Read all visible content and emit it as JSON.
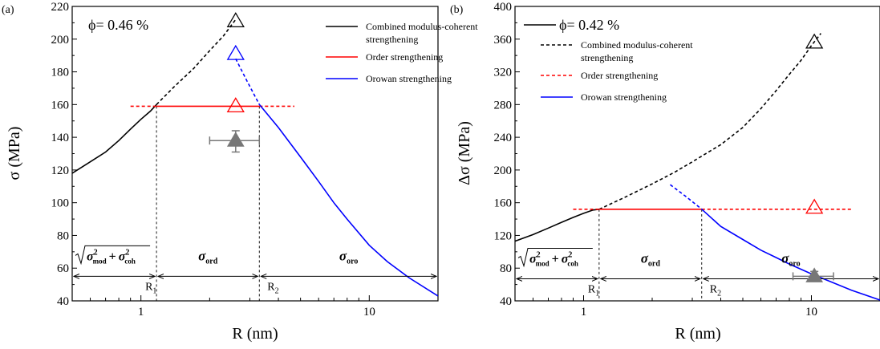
{
  "chart_data": [
    {
      "panel_label": "(a)",
      "type": "line",
      "x_scale": "log",
      "xlim": [
        0.5,
        20
      ],
      "ylim": [
        40,
        220
      ],
      "xlabel": "R (nm)",
      "ylabel": "σ (MPa)",
      "x_tick_labels": [
        {
          "value": 1,
          "label": "1"
        },
        {
          "value": 10,
          "label": "10"
        }
      ],
      "y_ticks": [
        40,
        60,
        80,
        100,
        120,
        140,
        160,
        180,
        200,
        220
      ],
      "phi_label": "ϕ= 0.46 %",
      "legend_position": "top-right",
      "legend": [
        {
          "line1": "Combined modulus-coherent",
          "line2": "strengthening",
          "color": "#000000",
          "style": "solid"
        },
        {
          "line1": "Order strengthening",
          "line2": "",
          "color": "#ff0000",
          "style": "solid"
        },
        {
          "line1": "Orowan strengthening",
          "line2": "",
          "color": "#0000ff",
          "style": "solid"
        }
      ],
      "series": [
        {
          "name": "Combined modulus-coherent strengthening",
          "color": "#000000",
          "dash": false,
          "x": [
            0.5,
            0.6,
            0.7,
            0.8,
            0.9,
            1.0,
            1.1,
            1.17
          ],
          "y": [
            118,
            125,
            131,
            138,
            145,
            151,
            156,
            160
          ]
        },
        {
          "name": "",
          "color": "#000000",
          "dash": true,
          "x": [
            1.17,
            1.4,
            1.7,
            2.0,
            2.3,
            2.6
          ],
          "y": [
            160,
            171,
            182,
            193,
            202,
            212
          ]
        },
        {
          "name": "Order strengthening",
          "color": "#ff0000",
          "dash": false,
          "x": [
            1.17,
            3.3
          ],
          "y": [
            159,
            159
          ]
        },
        {
          "name": "",
          "color": "#ff0000",
          "dash": true,
          "x": [
            0.9,
            1.17
          ],
          "y": [
            159,
            159
          ]
        },
        {
          "name": "",
          "color": "#ff0000",
          "dash": true,
          "x": [
            3.3,
            4.7
          ],
          "y": [
            159,
            159
          ]
        },
        {
          "name": "",
          "color": "#0000ff",
          "dash": true,
          "x": [
            2.6,
            2.9,
            3.3
          ],
          "y": [
            188,
            175,
            160
          ]
        },
        {
          "name": "Orowan strengthening",
          "color": "#0000ff",
          "dash": false,
          "x": [
            3.3,
            4.0,
            5.0,
            6.0,
            7.0,
            8.0,
            10.0,
            12.0,
            15.0,
            20.0
          ],
          "y": [
            160,
            146,
            128,
            113,
            100,
            90,
            74,
            64,
            54,
            43
          ]
        }
      ],
      "markers": [
        {
          "shape": "triangle-open",
          "color": "#000000",
          "x": 2.6,
          "y": 211
        },
        {
          "shape": "triangle-open",
          "color": "#0000ff",
          "x": 2.6,
          "y": 191
        },
        {
          "shape": "triangle-open",
          "color": "#ff0000",
          "x": 2.6,
          "y": 159
        },
        {
          "shape": "triangle-filled",
          "color": "#777777",
          "x": 2.6,
          "y": 138,
          "yerr": [
            131,
            144
          ],
          "xerr": [
            2.0,
            3.3
          ]
        }
      ],
      "vlines": [
        {
          "x": 1.17,
          "label_base": "R",
          "label_sub": "1"
        },
        {
          "x": 3.3,
          "label_base": "R",
          "label_sub": "2"
        }
      ],
      "arrow_y": 55,
      "regions": [
        {
          "x_from": 0.5,
          "x_to": 1.17,
          "kind": "sqrt",
          "sym": "σ",
          "sub1": "mod",
          "sub2": "coh"
        },
        {
          "x_from": 1.17,
          "x_to": 3.3,
          "kind": "sigma",
          "sym": "σ",
          "sub": "ord"
        },
        {
          "x_from": 3.3,
          "x_to": 20,
          "kind": "sigma",
          "sym": "σ",
          "sub": "oro"
        }
      ]
    },
    {
      "panel_label": "(b)",
      "type": "line",
      "x_scale": "log",
      "xlim": [
        0.5,
        20
      ],
      "ylim": [
        40,
        400
      ],
      "xlabel": "R (nm)",
      "ylabel": "Δσ (MPa)",
      "x_tick_labels": [
        {
          "value": 1,
          "label": "1"
        },
        {
          "value": 10,
          "label": "10"
        }
      ],
      "y_ticks": [
        40,
        80,
        120,
        160,
        200,
        240,
        280,
        320,
        360,
        400
      ],
      "phi_label": "ϕ= 0.42 %",
      "legend_position": "top-left",
      "legend": [
        {
          "line1": "Combined modulus-coherent",
          "line2": "strengthening",
          "color": "#000000",
          "style": "dashed"
        },
        {
          "line1": "Order strengthening",
          "line2": "",
          "color": "#ff0000",
          "style": "dashed"
        },
        {
          "line1": "Orowan strengthening",
          "line2": "",
          "color": "#0000ff",
          "style": "solid"
        }
      ],
      "series": [
        {
          "name": "Combined modulus-coherent strengthening",
          "color": "#000000",
          "dash": false,
          "x": [
            0.5,
            0.6,
            0.7,
            0.8,
            0.9,
            1.0,
            1.1,
            1.17
          ],
          "y": [
            113,
            121,
            129,
            136,
            142,
            147,
            151,
            152
          ]
        },
        {
          "name": "",
          "color": "#000000",
          "dash": true,
          "x": [
            1.17,
            1.5,
            2.0,
            2.5,
            3.0,
            4.0,
            5.0,
            6.0,
            7.0,
            8.0,
            9.0,
            10.0,
            11.0
          ],
          "y": [
            152,
            166,
            183,
            197,
            210,
            231,
            252,
            275,
            297,
            317,
            334,
            352,
            367
          ]
        },
        {
          "name": "Order strengthening",
          "color": "#ff0000",
          "dash": false,
          "x": [
            1.17,
            3.3
          ],
          "y": [
            152,
            152
          ]
        },
        {
          "name": "",
          "color": "#ff0000",
          "dash": true,
          "x": [
            0.9,
            1.17
          ],
          "y": [
            152,
            152
          ]
        },
        {
          "name": "",
          "color": "#ff0000",
          "dash": true,
          "x": [
            3.3,
            15.0
          ],
          "y": [
            152,
            152
          ]
        },
        {
          "name": "",
          "color": "#0000ff",
          "dash": true,
          "x": [
            2.4,
            2.8,
            3.3
          ],
          "y": [
            182,
            168,
            152
          ]
        },
        {
          "name": "Orowan strengthening",
          "color": "#0000ff",
          "dash": false,
          "x": [
            3.3,
            4.0,
            5.0,
            6.0,
            7.0,
            8.0,
            10.0,
            12.0,
            15.0,
            20.0
          ],
          "y": [
            152,
            131,
            115,
            102,
            93,
            85,
            73,
            64,
            53,
            41
          ]
        }
      ],
      "markers": [
        {
          "shape": "triangle-open",
          "color": "#000000",
          "x": 10.3,
          "y": 356
        },
        {
          "shape": "triangle-open",
          "color": "#ff0000",
          "x": 10.3,
          "y": 154
        },
        {
          "shape": "triangle-filled",
          "color": "#777777",
          "x": 10.3,
          "y": 70,
          "yerr": [
            64,
            76
          ],
          "xerr": [
            8.3,
            12.5
          ]
        }
      ],
      "vlines": [
        {
          "x": 1.17,
          "label_base": "R",
          "label_sub": "1"
        },
        {
          "x": 3.3,
          "label_base": "R",
          "label_sub": "2"
        }
      ],
      "arrow_y": 67,
      "regions": [
        {
          "x_from": 0.5,
          "x_to": 1.17,
          "kind": "sqrt",
          "sym": "σ",
          "sub1": "mod",
          "sub2": "coh"
        },
        {
          "x_from": 1.17,
          "x_to": 3.3,
          "kind": "sigma",
          "sym": "σ",
          "sub": "ord"
        },
        {
          "x_from": 3.3,
          "x_to": 20,
          "kind": "sigma",
          "sym": "σ",
          "sub": "oro"
        }
      ]
    }
  ]
}
